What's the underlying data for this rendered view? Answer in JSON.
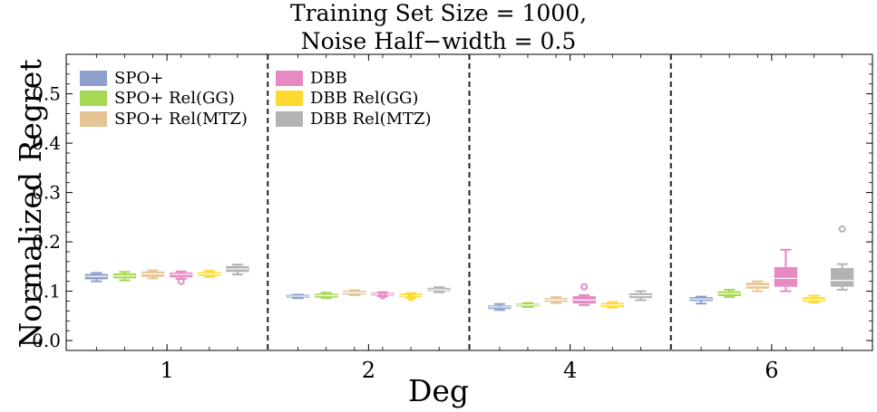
{
  "title_lines": [
    "Training Set Size = 1000,",
    "Noise Half−width = 0.5"
  ],
  "chart_data": {
    "type": "box",
    "title": "Training Set Size = 1000, Noise Half−width = 0.5",
    "xlabel": "Deg",
    "ylabel": "Normalized Regret",
    "ylim": [
      -0.02,
      0.58
    ],
    "yticks": [
      "0.0",
      "0.1",
      "0.2",
      "0.3",
      "0.4",
      "0.5"
    ],
    "categories": [
      "1",
      "2",
      "4",
      "6"
    ],
    "grid": false,
    "legend_position": "top-left",
    "series": [
      {
        "name": "SPO+",
        "color": "#8da0cb",
        "boxes": [
          {
            "whisker_low": 0.12,
            "q1": 0.125,
            "median": 0.13,
            "q3": 0.134,
            "whisker_high": 0.137,
            "outliers": []
          },
          {
            "whisker_low": 0.086,
            "q1": 0.088,
            "median": 0.09,
            "q3": 0.092,
            "whisker_high": 0.093,
            "outliers": []
          },
          {
            "whisker_low": 0.062,
            "q1": 0.065,
            "median": 0.068,
            "q3": 0.07,
            "whisker_high": 0.074,
            "outliers": []
          },
          {
            "whisker_low": 0.075,
            "q1": 0.081,
            "median": 0.084,
            "q3": 0.087,
            "whisker_high": 0.089,
            "outliers": []
          }
        ]
      },
      {
        "name": "SPO+ Rel(GG)",
        "color": "#a6d854",
        "boxes": [
          {
            "whisker_low": 0.122,
            "q1": 0.127,
            "median": 0.131,
            "q3": 0.135,
            "whisker_high": 0.139,
            "outliers": []
          },
          {
            "whisker_low": 0.086,
            "q1": 0.088,
            "median": 0.091,
            "q3": 0.094,
            "whisker_high": 0.097,
            "outliers": []
          },
          {
            "whisker_low": 0.068,
            "q1": 0.07,
            "median": 0.072,
            "q3": 0.074,
            "whisker_high": 0.076,
            "outliers": []
          },
          {
            "whisker_low": 0.088,
            "q1": 0.091,
            "median": 0.095,
            "q3": 0.099,
            "whisker_high": 0.103,
            "outliers": []
          }
        ]
      },
      {
        "name": "SPO+ Rel(MTZ)",
        "color": "#e5c494",
        "boxes": [
          {
            "whisker_low": 0.126,
            "q1": 0.13,
            "median": 0.135,
            "q3": 0.139,
            "whisker_high": 0.142,
            "outliers": []
          },
          {
            "whisker_low": 0.092,
            "q1": 0.094,
            "median": 0.097,
            "q3": 0.1,
            "whisker_high": 0.102,
            "outliers": []
          },
          {
            "whisker_low": 0.076,
            "q1": 0.079,
            "median": 0.082,
            "q3": 0.085,
            "whisker_high": 0.088,
            "outliers": []
          },
          {
            "whisker_low": 0.1,
            "q1": 0.106,
            "median": 0.111,
            "q3": 0.116,
            "whisker_high": 0.12,
            "outliers": []
          }
        ]
      },
      {
        "name": "DBB",
        "color": "#e78ac3",
        "boxes": [
          {
            "whisker_low": 0.125,
            "q1": 0.129,
            "median": 0.134,
            "q3": 0.137,
            "whisker_high": 0.14,
            "outliers": [
              0.12
            ]
          },
          {
            "whisker_low": 0.09,
            "q1": 0.092,
            "median": 0.094,
            "q3": 0.096,
            "whisker_high": 0.098,
            "outliers": [
              0.091
            ]
          },
          {
            "whisker_low": 0.072,
            "q1": 0.076,
            "median": 0.082,
            "q3": 0.089,
            "whisker_high": 0.092,
            "outliers": [
              0.109
            ]
          },
          {
            "whisker_low": 0.1,
            "q1": 0.11,
            "median": 0.126,
            "q3": 0.148,
            "whisker_high": 0.184,
            "outliers": []
          }
        ]
      },
      {
        "name": "DBB Rel(GG)",
        "color": "#ffd92f",
        "boxes": [
          {
            "whisker_low": 0.129,
            "q1": 0.132,
            "median": 0.135,
            "q3": 0.138,
            "whisker_high": 0.141,
            "outliers": []
          },
          {
            "whisker_low": 0.086,
            "q1": 0.089,
            "median": 0.091,
            "q3": 0.094,
            "whisker_high": 0.096,
            "outliers": [
              0.087
            ]
          },
          {
            "whisker_low": 0.067,
            "q1": 0.069,
            "median": 0.072,
            "q3": 0.075,
            "whisker_high": 0.078,
            "outliers": []
          },
          {
            "whisker_low": 0.077,
            "q1": 0.08,
            "median": 0.083,
            "q3": 0.087,
            "whisker_high": 0.091,
            "outliers": []
          }
        ]
      },
      {
        "name": "DBB Rel(MTZ)",
        "color": "#b3b3b3",
        "boxes": [
          {
            "whisker_low": 0.134,
            "q1": 0.14,
            "median": 0.145,
            "q3": 0.15,
            "whisker_high": 0.154,
            "outliers": []
          },
          {
            "whisker_low": 0.098,
            "q1": 0.101,
            "median": 0.103,
            "q3": 0.106,
            "whisker_high": 0.108,
            "outliers": []
          },
          {
            "whisker_low": 0.082,
            "q1": 0.087,
            "median": 0.091,
            "q3": 0.095,
            "whisker_high": 0.1,
            "outliers": []
          },
          {
            "whisker_low": 0.103,
            "q1": 0.11,
            "median": 0.122,
            "q3": 0.146,
            "whisker_high": 0.155,
            "outliers": [
              0.226
            ]
          }
        ]
      }
    ]
  }
}
